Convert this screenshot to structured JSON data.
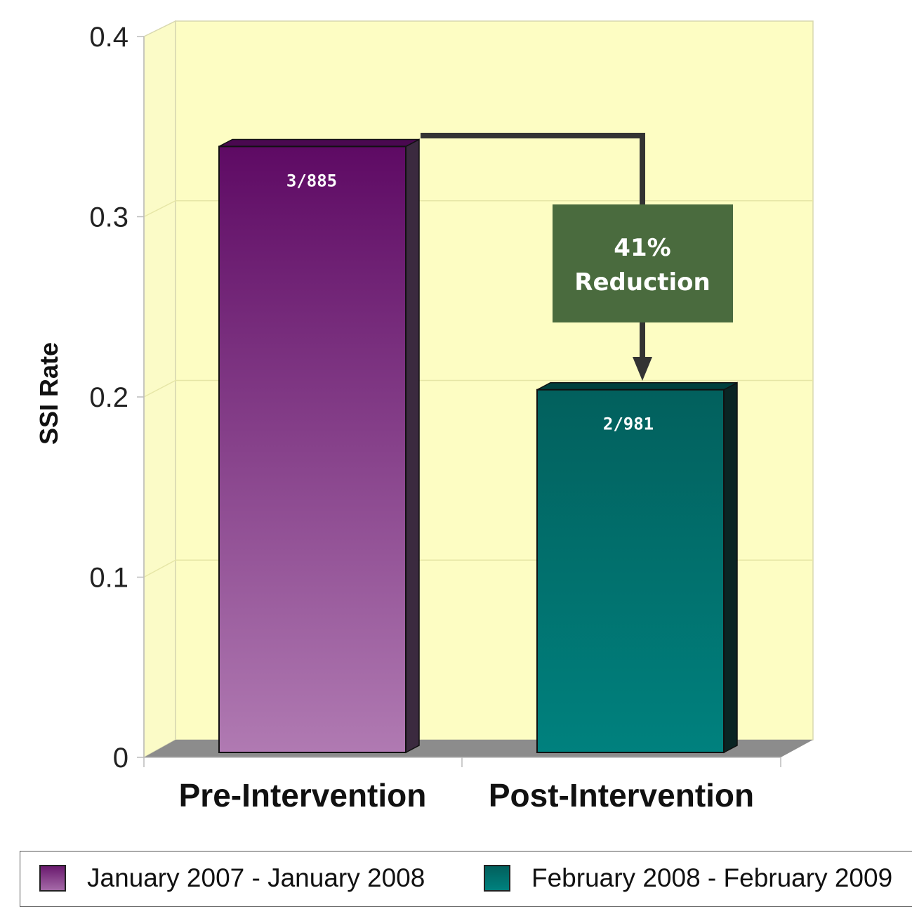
{
  "chart_data": {
    "type": "bar",
    "categories": [
      "Pre-Intervention",
      "Post-Intervention"
    ],
    "series": [
      {
        "name": "January 2007 - January 2008",
        "values": [
          0.339,
          null
        ],
        "color": "#6a1a6e"
      },
      {
        "name": "February 2008 - February 2009",
        "values": [
          null,
          0.204
        ],
        "color": "#00716e"
      }
    ],
    "values": [
      0.339,
      0.204
    ],
    "data_labels": [
      "3/885",
      "2/981"
    ],
    "ylabel": "SSI Rate",
    "xlabel": "",
    "ylim": [
      0,
      0.4
    ],
    "yticks": [
      "0",
      "0.1",
      "0.2",
      "0.3",
      "0.4"
    ],
    "annotation": {
      "line1": "41%",
      "line2": "Reduction"
    },
    "grid": true,
    "legend_position": "bottom",
    "style": "3d",
    "colors": {
      "wall": "#fdfdc3",
      "floor": "#8c8c8c",
      "annotation_box": "#4a6b3e",
      "arrow": "#333333"
    }
  }
}
